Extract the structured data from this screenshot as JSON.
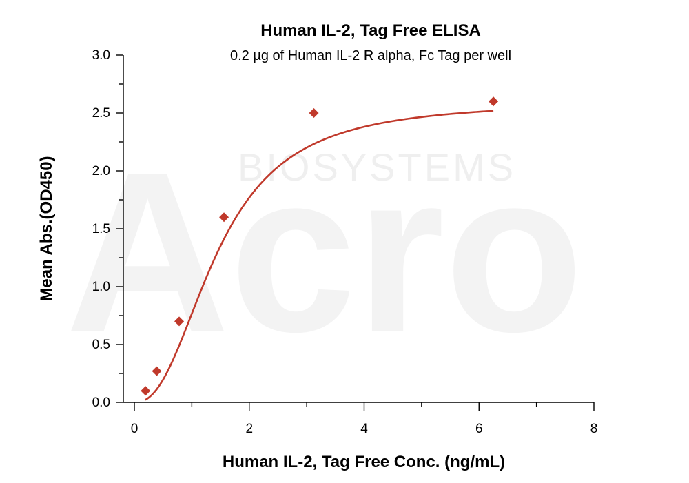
{
  "chart_data": {
    "type": "scatter",
    "title": "Human IL-2, Tag Free ELISA",
    "subtitle": "0.2 µg of Human IL-2 R alpha, Fc Tag per well",
    "xlabel": "Human IL-2, Tag Free Conc. (ng/mL)",
    "ylabel": "Mean Abs.(OD450)",
    "xlim": [
      0,
      8
    ],
    "ylim": [
      0,
      3.0
    ],
    "x_ticks": [
      "0",
      "2",
      "4",
      "6",
      "8"
    ],
    "y_ticks": [
      "0.0",
      "0.5",
      "1.0",
      "1.5",
      "2.0",
      "2.5",
      "3.0"
    ],
    "grid": false,
    "series": [
      {
        "marker": "diamond",
        "color": "#c0392b",
        "x": [
          0.195,
          0.39,
          0.78,
          1.56,
          3.125,
          6.25
        ],
        "y": [
          0.1,
          0.27,
          0.7,
          1.6,
          2.5,
          2.6
        ],
        "fit_curve": "sigmoidal"
      }
    ],
    "watermark": {
      "main": "Acro",
      "sub": "BIOSYSTEMS"
    }
  }
}
